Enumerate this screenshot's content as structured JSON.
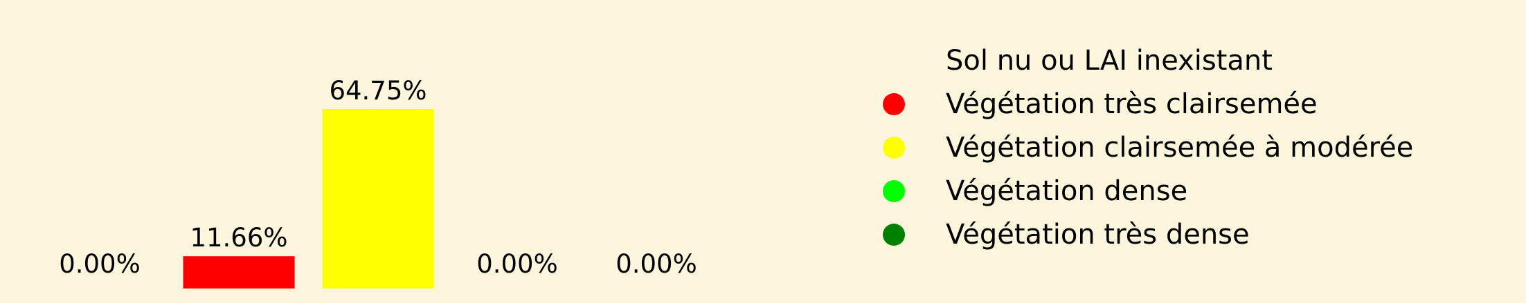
{
  "chart_data": {
    "type": "bar",
    "title": "",
    "xlabel": "",
    "ylabel": "",
    "ylim": [
      0,
      64.75
    ],
    "grid": false,
    "axes_visible": false,
    "legend_position": "right",
    "background_color": "#fdf6dc",
    "categories": [
      "Sol nu ou LAI inexistant",
      "Végétation très clairsemée",
      "Végétation clairsemée à modérée",
      "Végétation dense",
      "Végétation très dense"
    ],
    "values": [
      0.0,
      11.66,
      64.75,
      0.0,
      0.0
    ],
    "data_labels": [
      "0.00%",
      "11.66%",
      "64.75%",
      "0.00%",
      "0.00%"
    ],
    "colors": [
      "#fdf6dc",
      "#ff0000",
      "#ffff00",
      "#00ff00",
      "#008000"
    ],
    "legend": [
      {
        "label": "Sol nu ou LAI inexistant",
        "color": "#fdf6dc"
      },
      {
        "label": "Végétation très clairsemée",
        "color": "#ff0000"
      },
      {
        "label": "Végétation clairsemée à modérée",
        "color": "#ffff00"
      },
      {
        "label": "Végétation dense",
        "color": "#00ff00"
      },
      {
        "label": "Végétation très dense",
        "color": "#008000"
      }
    ]
  }
}
